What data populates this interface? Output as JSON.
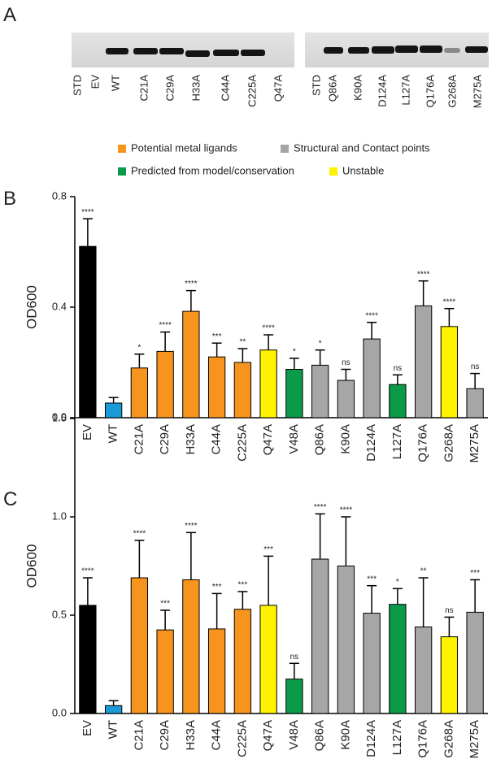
{
  "panels": [
    "A",
    "B",
    "C"
  ],
  "blot": {
    "left_lanes": [
      "STD",
      "EV",
      "WT",
      "C21A",
      "C29A",
      "H33A",
      "C44A",
      "C225A",
      "Q47A"
    ],
    "right_lanes": [
      "STD",
      "Q86A",
      "K90A",
      "D124A",
      "L127A",
      "Q176A",
      "G268A",
      "M275A"
    ]
  },
  "legend": [
    {
      "label": "Potential metal ligands",
      "color": "#f7941d"
    },
    {
      "label": "Structural and Contact points",
      "color": "#a6a6a6"
    },
    {
      "label": "Predicted from model/conservation",
      "color": "#0a9a48"
    },
    {
      "label": "Unstable",
      "color": "#fff200"
    }
  ],
  "chart_data": [
    {
      "type": "bar",
      "ylabel": "OD600",
      "categories": [
        "EV",
        "WT",
        "C21A",
        "C29A",
        "H33A",
        "C44A",
        "C225A",
        "Q47A",
        "V48A",
        "Q86A",
        "K90A",
        "D124A",
        "L127A",
        "Q176A",
        "G268A",
        "M275A"
      ],
      "values": [
        0.62,
        0.053,
        0.18,
        0.24,
        0.385,
        0.22,
        0.2,
        0.245,
        0.175,
        0.19,
        0.135,
        0.285,
        0.12,
        0.405,
        0.33,
        0.105
      ],
      "errors": [
        0.1,
        0.02,
        0.05,
        0.07,
        0.075,
        0.05,
        0.05,
        0.055,
        0.04,
        0.055,
        0.04,
        0.06,
        0.035,
        0.09,
        0.065,
        0.055
      ],
      "significance": [
        "****",
        null,
        "*",
        "****",
        "****",
        "***",
        "**",
        "****",
        "*",
        "*",
        "ns",
        "****",
        "ns",
        "****",
        "****",
        "ns"
      ],
      "colors": [
        "#000000",
        "#1a9ad6",
        "#f7941d",
        "#f7941d",
        "#f7941d",
        "#f7941d",
        "#f7941d",
        "#fff200",
        "#0a9a48",
        "#a6a6a6",
        "#a6a6a6",
        "#a6a6a6",
        "#0a9a48",
        "#a6a6a6",
        "#fff200",
        "#a6a6a6"
      ],
      "ylim": [
        0,
        0.8
      ],
      "yticks": [
        {
          "value": 0,
          "label": "0.0"
        },
        {
          "value": 0.4,
          "label": "0.4"
        },
        {
          "value": 0.8,
          "label": "0.8"
        }
      ]
    },
    {
      "type": "bar",
      "ylabel": "OD600",
      "categories": [
        "EV",
        "WT",
        "C21A",
        "C29A",
        "H33A",
        "C44A",
        "C225A",
        "Q47A",
        "V48A",
        "Q86A",
        "K90A",
        "D124A",
        "L127A",
        "Q176A",
        "G268A",
        "M275A"
      ],
      "values": [
        0.55,
        0.04,
        0.69,
        0.425,
        0.68,
        0.43,
        0.53,
        0.55,
        0.175,
        0.785,
        0.75,
        0.51,
        0.555,
        0.44,
        0.39,
        0.515
      ],
      "errors": [
        0.14,
        0.025,
        0.19,
        0.1,
        0.24,
        0.18,
        0.09,
        0.25,
        0.08,
        0.23,
        0.25,
        0.14,
        0.08,
        0.25,
        0.1,
        0.165
      ],
      "significance": [
        "****",
        null,
        "****",
        "***",
        "****",
        "***",
        "***",
        "***",
        "ns",
        "****",
        "****",
        "***",
        "*",
        "**",
        "ns",
        "***"
      ],
      "colors": [
        "#000000",
        "#1a9ad6",
        "#f7941d",
        "#f7941d",
        "#f7941d",
        "#f7941d",
        "#f7941d",
        "#fff200",
        "#0a9a48",
        "#a6a6a6",
        "#a6a6a6",
        "#a6a6a6",
        "#0a9a48",
        "#a6a6a6",
        "#fff200",
        "#a6a6a6"
      ],
      "ylim": [
        0,
        1.5
      ],
      "yticks": [
        {
          "value": 0,
          "label": "0.0"
        },
        {
          "value": 0.5,
          "label": "0.5"
        },
        {
          "value": 1,
          "label": "1.0"
        },
        {
          "value": 1.5,
          "label": "1.5"
        }
      ]
    }
  ]
}
